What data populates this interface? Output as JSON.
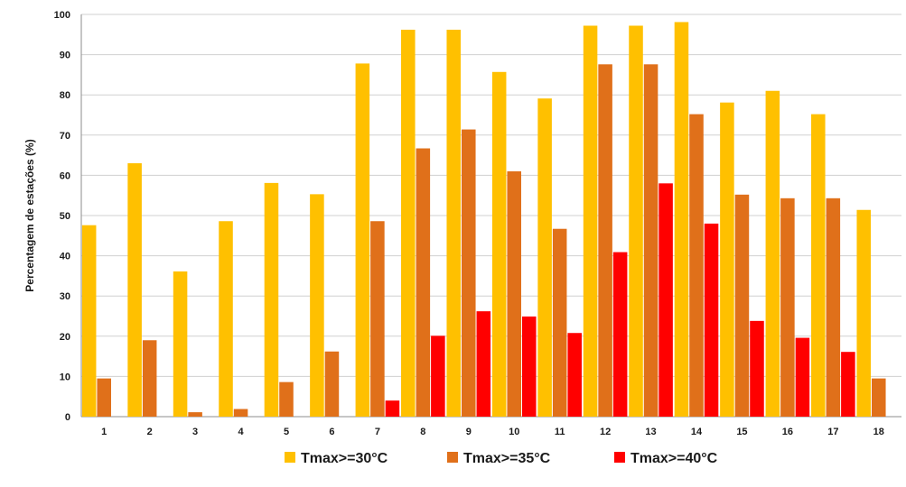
{
  "chart_data": {
    "type": "bar",
    "title": "",
    "xlabel": "",
    "ylabel": "Percentagem de estações (%)",
    "ylim": [
      0,
      100
    ],
    "yticks": [
      0,
      10,
      20,
      30,
      40,
      50,
      60,
      70,
      80,
      90,
      100
    ],
    "grid": "horizontal",
    "legend_position": "bottom",
    "categories": [
      "1",
      "2",
      "3",
      "4",
      "5",
      "6",
      "7",
      "8",
      "9",
      "10",
      "11",
      "12",
      "13",
      "14",
      "15",
      "16",
      "17",
      "18"
    ],
    "series": [
      {
        "name": "Tmax>=30°C",
        "color": "#FFC000",
        "values": [
          47.6,
          63,
          36.1,
          48.6,
          58.1,
          55.3,
          87.8,
          96.2,
          96.2,
          85.7,
          79.1,
          97.2,
          97.2,
          98.1,
          78.1,
          81,
          75.2,
          51.4
        ]
      },
      {
        "name": "Tmax>=35°C",
        "color": "#E0701A",
        "values": [
          9.5,
          19,
          1.1,
          1.9,
          8.6,
          16.2,
          48.6,
          66.7,
          71.4,
          61,
          46.7,
          87.6,
          87.6,
          75.2,
          55.2,
          54.3,
          54.3,
          9.5
        ]
      },
      {
        "name": "Tmax>=40°C",
        "color": "#FF0000",
        "values": [
          0,
          0,
          0,
          0,
          0,
          0,
          4,
          20.1,
          26.2,
          24.9,
          20.8,
          40.9,
          58,
          48,
          23.8,
          19.6,
          16.1,
          0
        ]
      }
    ]
  }
}
